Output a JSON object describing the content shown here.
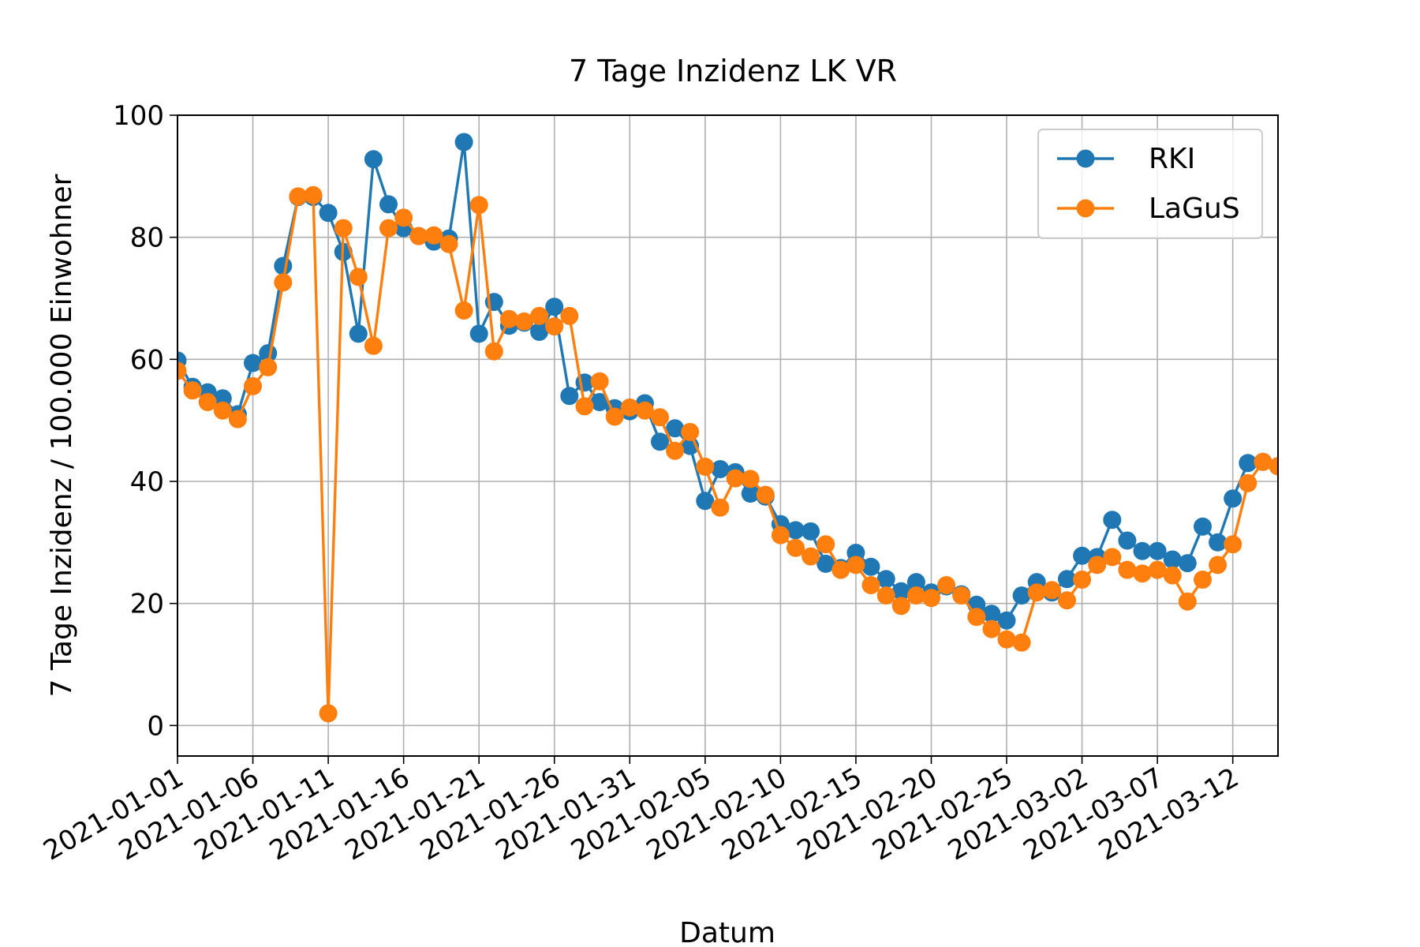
{
  "chart_data": {
    "type": "line",
    "title": "7 Tage Inzidenz LK VR",
    "xlabel": "Datum",
    "ylabel": "7 Tage Inzidenz / 100.000 Einwohner",
    "xlim": [
      "2021-01-01",
      "2021-03-15"
    ],
    "ylim": [
      -5,
      100
    ],
    "xticks": [
      "2021-01-01",
      "2021-01-06",
      "2021-01-11",
      "2021-01-16",
      "2021-01-21",
      "2021-01-26",
      "2021-01-31",
      "2021-02-05",
      "2021-02-10",
      "2021-02-15",
      "2021-02-20",
      "2021-02-25",
      "2021-03-02",
      "2021-03-07",
      "2021-03-12"
    ],
    "yticks": [
      0,
      20,
      40,
      60,
      80,
      100
    ],
    "grid": true,
    "legend": "top-right",
    "x": [
      "2021-01-01",
      "2021-01-02",
      "2021-01-03",
      "2021-01-04",
      "2021-01-05",
      "2021-01-06",
      "2021-01-07",
      "2021-01-08",
      "2021-01-09",
      "2021-01-10",
      "2021-01-11",
      "2021-01-12",
      "2021-01-13",
      "2021-01-14",
      "2021-01-15",
      "2021-01-16",
      "2021-01-17",
      "2021-01-18",
      "2021-01-19",
      "2021-01-20",
      "2021-01-21",
      "2021-01-22",
      "2021-01-23",
      "2021-01-24",
      "2021-01-25",
      "2021-01-26",
      "2021-01-27",
      "2021-01-28",
      "2021-01-29",
      "2021-01-30",
      "2021-01-31",
      "2021-02-01",
      "2021-02-02",
      "2021-02-03",
      "2021-02-04",
      "2021-02-05",
      "2021-02-06",
      "2021-02-07",
      "2021-02-08",
      "2021-02-09",
      "2021-02-10",
      "2021-02-11",
      "2021-02-12",
      "2021-02-13",
      "2021-02-14",
      "2021-02-15",
      "2021-02-16",
      "2021-02-17",
      "2021-02-18",
      "2021-02-19",
      "2021-02-20",
      "2021-02-21",
      "2021-02-22",
      "2021-02-23",
      "2021-02-24",
      "2021-02-25",
      "2021-02-26",
      "2021-02-27",
      "2021-02-28",
      "2021-03-01",
      "2021-03-02",
      "2021-03-03",
      "2021-03-04",
      "2021-03-05",
      "2021-03-06",
      "2021-03-07",
      "2021-03-08",
      "2021-03-09",
      "2021-03-10",
      "2021-03-11",
      "2021-03-12",
      "2021-03-13",
      "2021-03-14",
      "2021-03-15"
    ],
    "series": [
      {
        "name": "RKI",
        "color": "#1f77b4",
        "values": [
          59.8,
          55.5,
          54.6,
          53.6,
          51.0,
          59.4,
          61.0,
          75.3,
          86.6,
          86.6,
          84.0,
          77.6,
          64.2,
          92.8,
          85.4,
          81.5,
          80.2,
          79.3,
          79.8,
          95.6,
          64.2,
          69.4,
          65.5,
          66.0,
          64.5,
          68.6,
          54.0,
          56.2,
          53.0,
          52.0,
          51.5,
          52.8,
          46.5,
          48.7,
          45.8,
          36.8,
          42.0,
          41.5,
          38.0,
          37.5,
          33.0,
          32.0,
          31.8,
          26.5,
          25.8,
          28.3,
          26.0,
          24.0,
          22.0,
          23.5,
          21.8,
          22.8,
          21.5,
          19.8,
          18.3,
          17.2,
          21.3,
          23.5,
          21.8,
          24.0,
          27.8,
          27.6,
          33.7,
          30.3,
          28.6,
          28.6,
          27.2,
          26.6,
          32.6,
          30.0,
          37.2,
          43.0,
          43.2,
          42.5
        ]
      },
      {
        "name": "LaGuS",
        "color": "#ff7f0e",
        "values": [
          58.1,
          54.9,
          53.0,
          51.6,
          50.2,
          55.6,
          58.7,
          72.6,
          86.7,
          86.9,
          2.0,
          81.5,
          73.5,
          62.2,
          81.5,
          83.2,
          80.2,
          80.3,
          78.9,
          68.0,
          85.3,
          61.3,
          66.6,
          66.2,
          67.1,
          65.4,
          67.1,
          52.3,
          56.4,
          50.6,
          52.1,
          51.6,
          50.5,
          45.0,
          48.1,
          42.4,
          35.7,
          40.5,
          40.4,
          37.8,
          31.2,
          29.1,
          27.7,
          29.7,
          25.5,
          26.3,
          23.0,
          21.3,
          19.6,
          21.3,
          20.9,
          23.0,
          21.3,
          17.8,
          15.8,
          14.1,
          13.6,
          21.8,
          22.2,
          20.5,
          23.9,
          26.3,
          27.6,
          25.5,
          24.9,
          25.5,
          24.6,
          20.3,
          23.9,
          26.3,
          29.7,
          39.7,
          43.2,
          42.5
        ]
      }
    ]
  }
}
